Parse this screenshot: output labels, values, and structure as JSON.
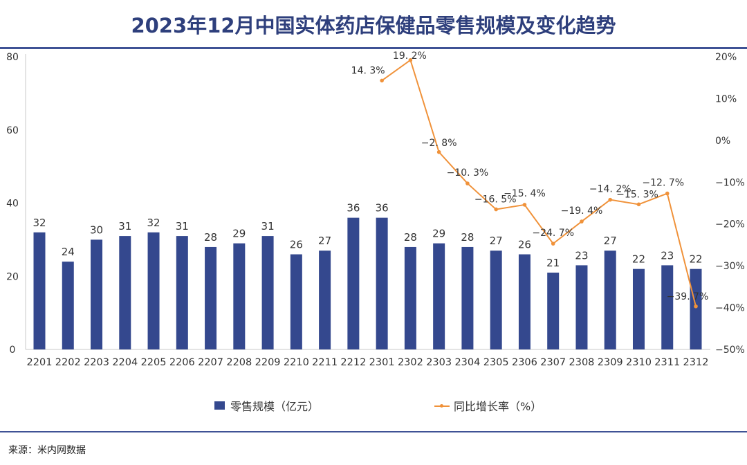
{
  "chart_data": {
    "type": "bar+line",
    "title": "2023年12月中国实体药店保健品零售规模及变化趋势",
    "categories": [
      "2201",
      "2202",
      "2203",
      "2204",
      "2205",
      "2206",
      "2207",
      "2208",
      "2209",
      "2210",
      "2211",
      "2212",
      "2301",
      "2302",
      "2303",
      "2304",
      "2305",
      "2306",
      "2307",
      "2308",
      "2309",
      "2310",
      "2311",
      "2312"
    ],
    "series": [
      {
        "name": "零售规模（亿元）",
        "type": "bar",
        "axis": "left",
        "color": "#34488e",
        "values": [
          32,
          24,
          30,
          31,
          32,
          31,
          28,
          29,
          31,
          26,
          27,
          36,
          36,
          28,
          29,
          28,
          27,
          26,
          21,
          23,
          27,
          22,
          23,
          22
        ],
        "labels": [
          "32",
          "24",
          "30",
          "31",
          "32",
          "31",
          "28",
          "29",
          "31",
          "26",
          "27",
          "36",
          "36",
          "28",
          "29",
          "28",
          "27",
          "26",
          "21",
          "23",
          "27",
          "22",
          "23",
          "22"
        ]
      },
      {
        "name": "同比增长率（%）",
        "type": "line",
        "axis": "right",
        "color": "#f0923a",
        "values": [
          null,
          null,
          null,
          null,
          null,
          null,
          null,
          null,
          null,
          null,
          null,
          null,
          14.3,
          19.2,
          -2.8,
          -10.3,
          -16.5,
          -15.4,
          -24.7,
          -19.4,
          -14.2,
          -15.3,
          -12.7,
          -39.7
        ],
        "labels": [
          "",
          "",
          "",
          "",
          "",
          "",
          "",
          "",
          "",
          "",
          "",
          "",
          "14. 3%",
          "19. 2%",
          "−2. 8%",
          "−10. 3%",
          "−16. 5%",
          "−15. 4%",
          "−24. 7%",
          "−19. 4%",
          "−14. 2%",
          "−15. 3%",
          "−12. 7%",
          "−39. 7%"
        ]
      }
    ],
    "y_left": {
      "ylim": [
        0,
        80
      ],
      "ticks": [
        0,
        20,
        40,
        60,
        80
      ],
      "tick_labels": [
        "0",
        "20",
        "40",
        "60",
        "80"
      ]
    },
    "y_right": {
      "ylim": [
        -50,
        20
      ],
      "ticks": [
        20,
        10,
        0,
        -10,
        -20,
        -30,
        -40,
        -50
      ],
      "tick_labels": [
        "20%",
        "10%",
        "0%",
        "−10%",
        "−20%",
        "−30%",
        "−40%",
        "−50%"
      ]
    },
    "xlabel": "",
    "grid": false,
    "legend": "bottom-center"
  },
  "legend": {
    "bar_label": "零售规模（亿元）",
    "line_label": "同比增长率（%）"
  },
  "source": "来源：米内网数据"
}
